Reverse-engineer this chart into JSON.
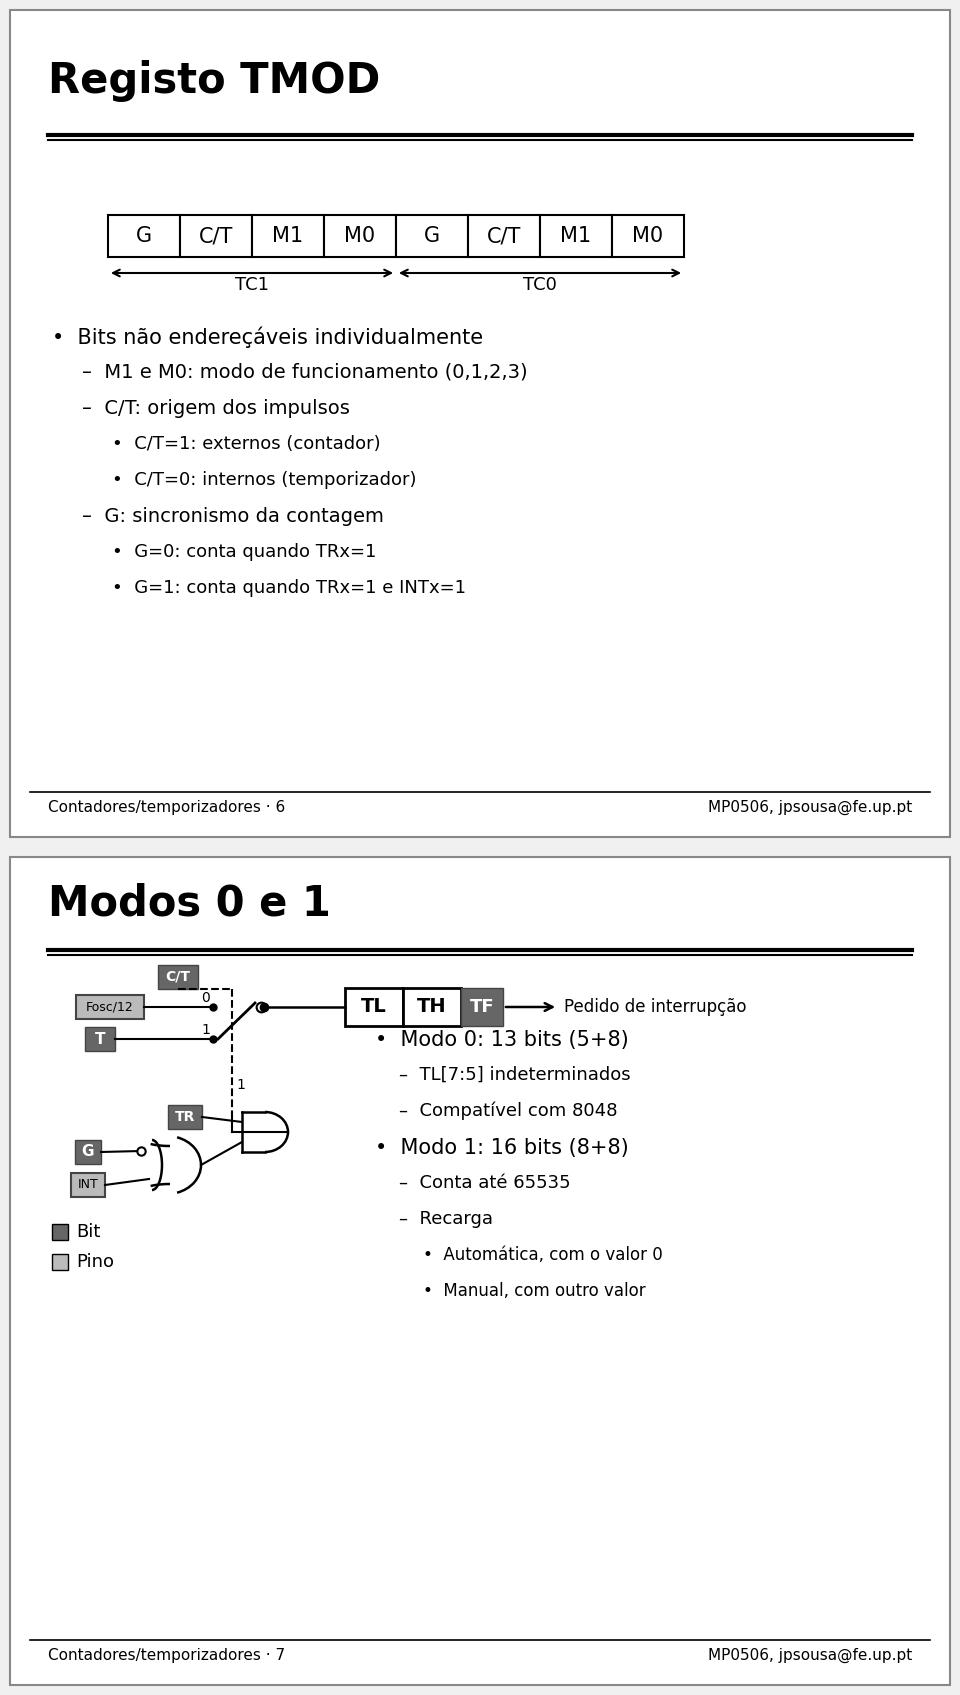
{
  "bg_color": "#f0f0f0",
  "slide1": {
    "title": "Registo TMOD",
    "register_labels": [
      "G",
      "C/T",
      "M1",
      "M0",
      "G",
      "C/T",
      "M1",
      "M0"
    ],
    "tc1_label": "TC1",
    "tc0_label": "TC0",
    "bullets": [
      {
        "level": 0,
        "text": "Bits não endereçáveis individualmente"
      },
      {
        "level": 1,
        "text": "M1 e M0: modo de funcionamento (0,1,2,3)"
      },
      {
        "level": 1,
        "text": "C/T: origem dos impulsos"
      },
      {
        "level": 2,
        "text": "C/T=1: externos (contador)"
      },
      {
        "level": 2,
        "text": "C/T=0: internos (temporizador)"
      },
      {
        "level": 1,
        "text": "G: sincronismo da contagem"
      },
      {
        "level": 2,
        "text": "G=0: conta quando TRx=1"
      },
      {
        "level": 2,
        "text": "G=1: conta quando TRx=1 e INTx=1"
      }
    ],
    "footer_left": "Contadores/temporizadores · 6",
    "footer_right": "MP0506, jpsousa@fe.up.pt"
  },
  "slide2": {
    "title": "Modos 0 e 1",
    "footer_left": "Contadores/temporizadores · 7",
    "footer_right": "MP0506, jpsousa@fe.up.pt",
    "legend_bit": "Bit",
    "legend_pino": "Pino",
    "interrupt_label": "Pedido de interrupção",
    "bullets": [
      {
        "level": 0,
        "text": "Modo 0: 13 bits (5+8)"
      },
      {
        "level": 1,
        "text": "TL[7:5] indeterminados"
      },
      {
        "level": 1,
        "text": "Compatível com 8048"
      },
      {
        "level": 0,
        "text": "Modo 1: 16 bits (8+8)"
      },
      {
        "level": 1,
        "text": "Conta até 65535"
      },
      {
        "level": 1,
        "text": "Recarga"
      },
      {
        "level": 2,
        "text": "Automática, com o valor 0"
      },
      {
        "level": 2,
        "text": "Manual, com outro valor"
      }
    ]
  }
}
